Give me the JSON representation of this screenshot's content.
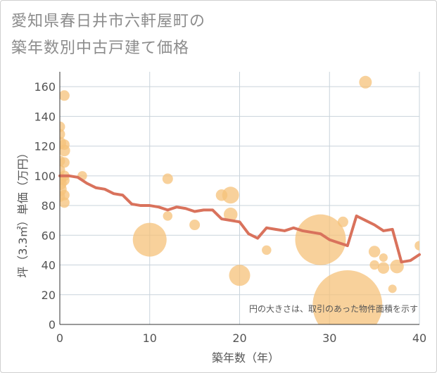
{
  "title_lines": [
    "愛知県春日井市六軒屋町の",
    "築年数別中古戸建て価格"
  ],
  "chart_data": {
    "type": "scatter",
    "title": "愛知県春日井市六軒屋町の築年数別中古戸建て価格",
    "xlabel": "築年数（年）",
    "ylabel": "坪（3.3㎡）単価（万円）",
    "xlim": [
      0,
      40
    ],
    "ylim": [
      0,
      170
    ],
    "xticks": [
      0,
      10,
      20,
      30,
      40
    ],
    "yticks": [
      0,
      20,
      40,
      60,
      80,
      100,
      120,
      140,
      160
    ],
    "grid": true,
    "note": "円の大きさは、取引のあった物件面積を示す",
    "colors": {
      "bubble": "#f5c27a",
      "line": "#d9725c",
      "grid": "#c9d3db",
      "text": "#555555"
    },
    "scatter": [
      {
        "x": 0,
        "y": 133,
        "size": 1
      },
      {
        "x": 0,
        "y": 128,
        "size": 1
      },
      {
        "x": 0,
        "y": 122,
        "size": 1.2
      },
      {
        "x": 0,
        "y": 110,
        "size": 1
      },
      {
        "x": 0,
        "y": 104,
        "size": 1
      },
      {
        "x": 0,
        "y": 98,
        "size": 1.2
      },
      {
        "x": 0,
        "y": 95,
        "size": 1.3
      },
      {
        "x": 0,
        "y": 91,
        "size": 1.3
      },
      {
        "x": 0,
        "y": 86,
        "size": 1
      },
      {
        "x": 0.5,
        "y": 154,
        "size": 1
      },
      {
        "x": 0.5,
        "y": 121,
        "size": 1
      },
      {
        "x": 0.5,
        "y": 117,
        "size": 1.1
      },
      {
        "x": 0.5,
        "y": 109,
        "size": 1
      },
      {
        "x": 0.5,
        "y": 100,
        "size": 1
      },
      {
        "x": 0.5,
        "y": 97,
        "size": 1
      },
      {
        "x": 0.5,
        "y": 87,
        "size": 1
      },
      {
        "x": 0.5,
        "y": 82,
        "size": 1
      },
      {
        "x": 2.5,
        "y": 100,
        "size": 0.9
      },
      {
        "x": 10,
        "y": 57,
        "size": 3.2
      },
      {
        "x": 12,
        "y": 98,
        "size": 1
      },
      {
        "x": 12,
        "y": 73,
        "size": 0.9
      },
      {
        "x": 15,
        "y": 67,
        "size": 1
      },
      {
        "x": 18,
        "y": 87,
        "size": 1.1
      },
      {
        "x": 19,
        "y": 87,
        "size": 1.6
      },
      {
        "x": 19,
        "y": 74,
        "size": 1.3
      },
      {
        "x": 20,
        "y": 33,
        "size": 2
      },
      {
        "x": 23,
        "y": 50,
        "size": 0.9
      },
      {
        "x": 29,
        "y": 57,
        "size": 4.8
      },
      {
        "x": 31.5,
        "y": 69,
        "size": 1
      },
      {
        "x": 32,
        "y": 13,
        "size": 6.6
      },
      {
        "x": 34,
        "y": 163,
        "size": 1.2
      },
      {
        "x": 35,
        "y": 49,
        "size": 1.1
      },
      {
        "x": 35,
        "y": 40,
        "size": 0.9
      },
      {
        "x": 36,
        "y": 45,
        "size": 0.8
      },
      {
        "x": 36,
        "y": 38,
        "size": 1.1
      },
      {
        "x": 37,
        "y": 24,
        "size": 0.8
      },
      {
        "x": 37.5,
        "y": 39,
        "size": 1.3
      },
      {
        "x": 40,
        "y": 53,
        "size": 0.9
      }
    ],
    "line": {
      "x": [
        0,
        1,
        2,
        3,
        4,
        5,
        6,
        7,
        8,
        9,
        10,
        11,
        12,
        13,
        14,
        15,
        16,
        17,
        18,
        19,
        20,
        21,
        22,
        23,
        24,
        25,
        26,
        27,
        28,
        29,
        30,
        31,
        32,
        33,
        34,
        35,
        36,
        37,
        38,
        39,
        40
      ],
      "y": [
        100,
        100,
        99,
        95,
        92,
        91,
        88,
        87,
        81,
        80,
        80,
        79,
        77,
        79,
        78,
        76,
        77,
        77,
        71,
        70,
        69,
        61,
        58,
        65,
        64,
        63,
        65,
        63,
        62,
        61,
        57,
        55,
        53,
        73,
        70,
        67,
        63,
        64,
        42,
        43,
        47
      ]
    }
  }
}
